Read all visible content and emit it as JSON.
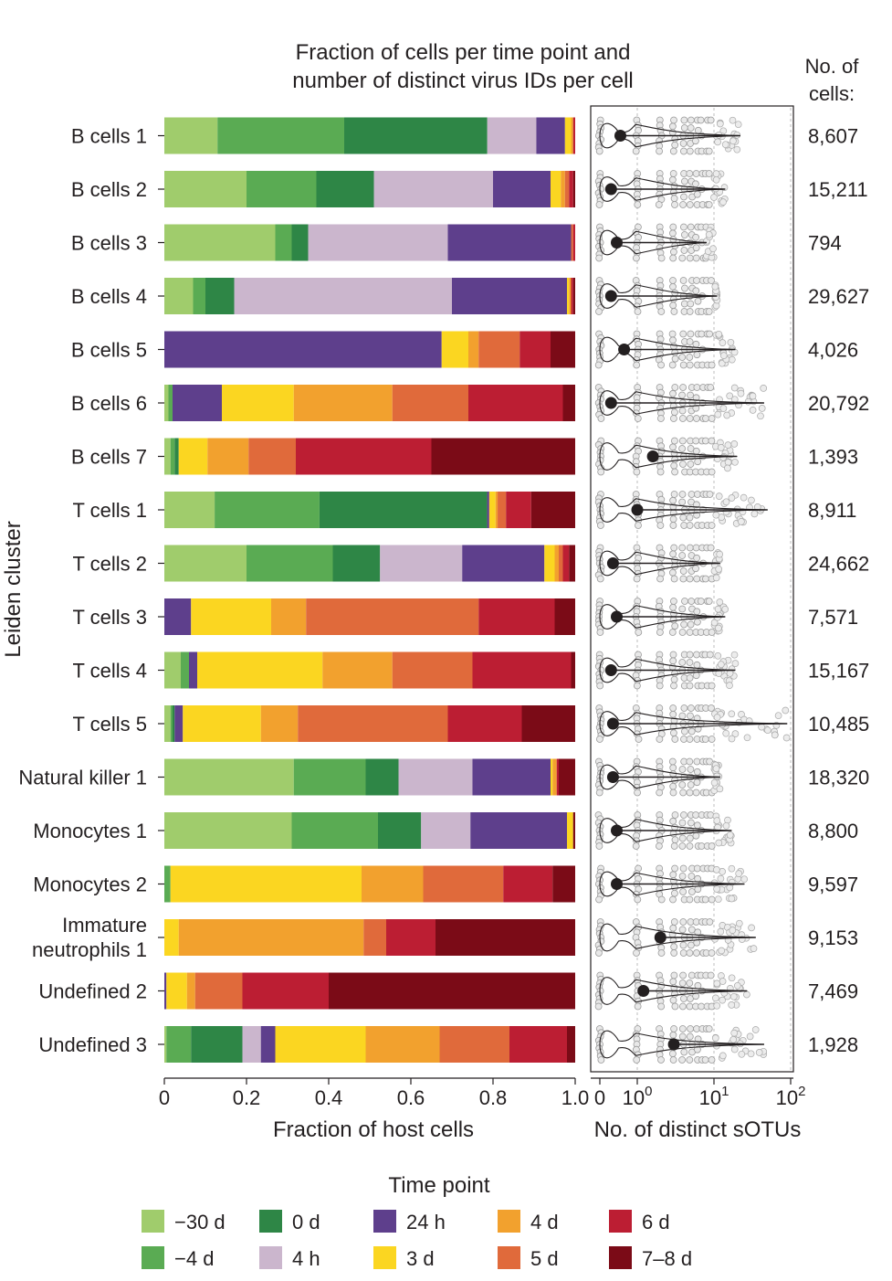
{
  "chart_data": {
    "type": "bar",
    "subtype": "stacked-horizontal",
    "title": [
      "Fraction of cells per time point and",
      "number of distinct virus IDs per cell"
    ],
    "ylabel": "Leiden cluster",
    "xlabel": "Fraction of host cells",
    "xlim": [
      0,
      1
    ],
    "xticks": [
      "0",
      "0.2",
      "0.4",
      "0.6",
      "0.8",
      "1.0"
    ],
    "count_header": [
      "No. of",
      "cells:"
    ],
    "legend_title": "Time point",
    "series_names": [
      "−30 d",
      "−4 d",
      "0 d",
      "4 h",
      "24 h",
      "3 d",
      "4 d",
      "5 d",
      "6 d",
      "7–8 d"
    ],
    "series_colors": [
      "#a0cc6c",
      "#5aab53",
      "#2e8646",
      "#cbb6cd",
      "#5e3f8c",
      "#fbd621",
      "#f2a12e",
      "#e06a3b",
      "#bc1e33",
      "#7b0b17"
    ],
    "categories": [
      {
        "label": [
          "B cells 1"
        ],
        "cells": "8,607",
        "values": [
          0.13,
          0.31,
          0.35,
          0.12,
          0.07,
          0.015,
          0.005,
          0.0,
          0.005,
          0.0
        ]
      },
      {
        "label": [
          "B cells 2"
        ],
        "cells": "15,211",
        "values": [
          0.2,
          0.17,
          0.14,
          0.29,
          0.14,
          0.025,
          0.01,
          0.01,
          0.01,
          0.005
        ]
      },
      {
        "label": [
          "B cells 3"
        ],
        "cells": "794",
        "values": [
          0.27,
          0.04,
          0.04,
          0.34,
          0.3,
          0.0,
          0.0,
          0.005,
          0.005,
          0.0
        ]
      },
      {
        "label": [
          "B cells 4"
        ],
        "cells": "29,627",
        "values": [
          0.07,
          0.03,
          0.07,
          0.53,
          0.28,
          0.005,
          0.005,
          0.0,
          0.005,
          0.005
        ]
      },
      {
        "label": [
          "B cells 5"
        ],
        "cells": "4,026",
        "values": [
          0.0,
          0.0,
          0.0,
          0.0,
          0.675,
          0.065,
          0.025,
          0.1,
          0.075,
          0.06
        ]
      },
      {
        "label": [
          "B cells 6"
        ],
        "cells": "20,792",
        "values": [
          0.01,
          0.01,
          0.0,
          0.0,
          0.12,
          0.175,
          0.24,
          0.185,
          0.23,
          0.03
        ]
      },
      {
        "label": [
          "B cells 7"
        ],
        "cells": "1,393",
        "values": [
          0.015,
          0.01,
          0.01,
          0.0,
          0.0,
          0.07,
          0.1,
          0.115,
          0.33,
          0.35
        ]
      },
      {
        "label": [
          "T cells 1"
        ],
        "cells": "8,911",
        "values": [
          0.12,
          0.25,
          0.4,
          0.0,
          0.005,
          0.015,
          0.005,
          0.02,
          0.06,
          0.105
        ]
      },
      {
        "label": [
          "T cells 2"
        ],
        "cells": "24,662",
        "values": [
          0.2,
          0.21,
          0.115,
          0.2,
          0.2,
          0.025,
          0.01,
          0.01,
          0.015,
          0.015
        ]
      },
      {
        "label": [
          "T cells 3"
        ],
        "cells": "7,571",
        "values": [
          0.0,
          0.0,
          0.0,
          0.0,
          0.065,
          0.195,
          0.085,
          0.42,
          0.185,
          0.05
        ]
      },
      {
        "label": [
          "T cells 4"
        ],
        "cells": "15,167",
        "values": [
          0.04,
          0.02,
          0.0,
          0.0,
          0.02,
          0.305,
          0.17,
          0.195,
          0.24,
          0.01
        ]
      },
      {
        "label": [
          "T cells 5"
        ],
        "cells": "10,485",
        "values": [
          0.015,
          0.005,
          0.005,
          0.0,
          0.02,
          0.19,
          0.09,
          0.365,
          0.18,
          0.13
        ]
      },
      {
        "label": [
          "Natural killer 1"
        ],
        "cells": "18,320",
        "values": [
          0.315,
          0.175,
          0.08,
          0.18,
          0.19,
          0.005,
          0.01,
          0.0,
          0.005,
          0.04
        ]
      },
      {
        "label": [
          "Monocytes 1"
        ],
        "cells": "8,800",
        "values": [
          0.31,
          0.21,
          0.105,
          0.12,
          0.235,
          0.015,
          0.0,
          0.0,
          0.0,
          0.005
        ]
      },
      {
        "label": [
          "Monocytes 2"
        ],
        "cells": "9,597",
        "values": [
          0.0,
          0.015,
          0.0,
          0.0,
          0.0,
          0.465,
          0.15,
          0.195,
          0.12,
          0.055
        ]
      },
      {
        "label": [
          "Immature",
          "neutrophils 1"
        ],
        "cells": "9,153",
        "values": [
          0.0,
          0.0,
          0.0,
          0.0,
          0.0,
          0.035,
          0.45,
          0.055,
          0.12,
          0.34
        ]
      },
      {
        "label": [
          "Undefined 2"
        ],
        "cells": "7,469",
        "values": [
          0.0,
          0.0,
          0.0,
          0.0,
          0.005,
          0.05,
          0.02,
          0.115,
          0.21,
          0.6
        ]
      },
      {
        "label": [
          "Undefined 3"
        ],
        "cells": "1,928",
        "values": [
          0.005,
          0.06,
          0.125,
          0.045,
          0.035,
          0.22,
          0.18,
          0.17,
          0.14,
          0.02
        ]
      }
    ],
    "violin": {
      "type": "violin-scatter",
      "xlabel": "No. of distinct sOTUs",
      "xscale": "symlog",
      "xticks": [
        {
          "value": 0,
          "label": "0"
        },
        {
          "value": 1,
          "label": "10",
          "sup": "0"
        },
        {
          "value": 10,
          "label": "10",
          "sup": "1"
        },
        {
          "value": 100,
          "label": "10",
          "sup": "2"
        }
      ],
      "medians": [
        0.55,
        0.3,
        0.45,
        0.3,
        0.65,
        0.3,
        1.6,
        1.0,
        0.35,
        0.45,
        0.3,
        0.35,
        0.35,
        0.45,
        0.45,
        2.0,
        1.2,
        3.0
      ],
      "whisker_max": [
        22,
        14,
        8,
        11,
        19,
        45,
        20,
        50,
        12,
        14,
        19,
        90,
        12,
        17,
        25,
        35,
        27,
        45
      ]
    }
  }
}
